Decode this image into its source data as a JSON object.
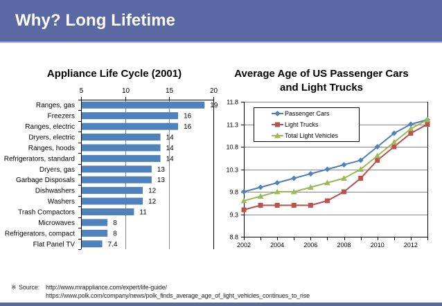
{
  "header": {
    "title": "Why? Long Lifetime"
  },
  "chart_data": [
    {
      "type": "bar",
      "orientation": "horizontal",
      "title": "Appliance Life Cycle (2001)",
      "categories": [
        "Ranges, gas",
        "Freezers",
        "Ranges, electric",
        "Dryers, electric",
        "Ranges, hoods",
        "Refrigerators, standard",
        "Dryers, gas",
        "Garbage Disposals",
        "Dishwashers",
        "Washers",
        "Trash Compactors",
        "Microwaves",
        "Refrigerators, compact",
        "Flat Panel TV"
      ],
      "values": [
        19,
        16,
        16,
        14,
        14,
        14,
        13,
        13,
        12,
        12,
        11,
        8,
        8,
        7.4
      ],
      "value_labels": [
        "19",
        "16",
        "16",
        "14",
        "14",
        "14",
        "13",
        "13",
        "12",
        "12",
        "11",
        "8",
        "8",
        "7.4"
      ],
      "xlabel": "",
      "ylabel": "",
      "xlim": [
        5,
        20
      ],
      "xticks": [
        5,
        10,
        15,
        20
      ],
      "x_axis_side": "top",
      "grid": "vertical",
      "color": "#4F81BD"
    },
    {
      "type": "line",
      "title": "Average Age of US Passenger Cars and Light Trucks",
      "title_lines": [
        "Average Age of US Passenger Cars",
        "and Light Trucks"
      ],
      "x": [
        2002,
        2003,
        2004,
        2005,
        2006,
        2007,
        2008,
        2009,
        2010,
        2011,
        2012,
        2013
      ],
      "xtick_labels": [
        "2002",
        "2004",
        "2006",
        "2008",
        "2010",
        "2012"
      ],
      "ylim": [
        8.8,
        11.8
      ],
      "yticks": [
        "8.8",
        "9.3",
        "9.8",
        "10.3",
        "10.8",
        "11.3",
        "11.8"
      ],
      "xlabel": "",
      "ylabel": "",
      "grid": "horizontal",
      "legend": "top-left",
      "series": [
        {
          "name": "Passenger Cars",
          "marker": "diamond",
          "color": "#4A7EBB",
          "marker_color": "#4F81BD",
          "values": [
            9.8,
            9.9,
            10.0,
            10.1,
            10.2,
            10.3,
            10.4,
            10.5,
            10.8,
            11.1,
            11.3,
            11.4
          ]
        },
        {
          "name": "Light Trucks",
          "marker": "square",
          "color": "#BE4B48",
          "marker_color": "#C0504D",
          "values": [
            9.4,
            9.5,
            9.5,
            9.5,
            9.5,
            9.6,
            9.8,
            10.1,
            10.5,
            10.8,
            11.1,
            11.3
          ]
        },
        {
          "name": "Total Light Vehicles",
          "marker": "triangle",
          "color": "#98B954",
          "marker_color": "#9BBB59",
          "values": [
            9.6,
            9.7,
            9.8,
            9.8,
            9.9,
            10.0,
            10.1,
            10.3,
            10.6,
            10.9,
            11.2,
            11.4
          ]
        }
      ]
    }
  ],
  "footer": {
    "source_icon": "※",
    "source_label": "Source:",
    "sources": [
      "http://www.mrappliance.com/expert/life-guide/",
      "https://www.polk.com/company/news/polk_finds_average_age_of_light_vehicles_continues_to_rise"
    ]
  },
  "colors": {
    "header_bg": "#5A69A3",
    "bar": "#4F81BD"
  }
}
